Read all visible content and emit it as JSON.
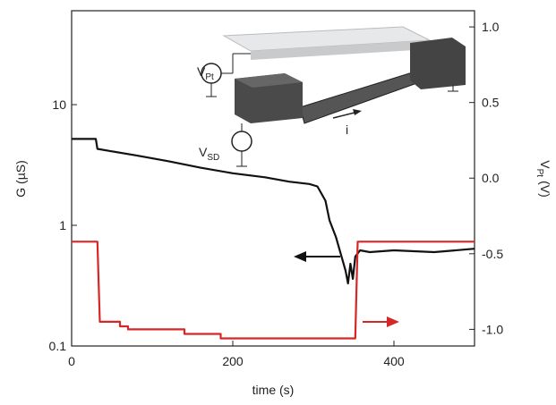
{
  "chart_data": {
    "type": "line",
    "xlabel": "time (s)",
    "ylabel": "G (µS)",
    "y2label": {
      "main": "V",
      "sub": "Pt",
      "unit": "(V)"
    },
    "xlim": [
      0,
      500
    ],
    "xticks": [
      0,
      200,
      400
    ],
    "ylim": [
      0.1,
      60
    ],
    "yticks": [
      0.1,
      1,
      10
    ],
    "log_y": true,
    "y2lim": [
      -1.11,
      1.107
    ],
    "y2ticks": [
      {
        "value": 1.0,
        "label": "1.0"
      },
      {
        "value": 0.5,
        "label": "0.5"
      },
      {
        "value": 0.0,
        "label": "0.0"
      },
      {
        "value": -0.5,
        "label": "-0.5"
      },
      {
        "value": -1.0,
        "label": "-1.0"
      }
    ],
    "series": [
      {
        "color": "#111111",
        "x": [
          0,
          30,
          32,
          50,
          80,
          120,
          160,
          200,
          240,
          270,
          295,
          305,
          315,
          320,
          328,
          335,
          340,
          343,
          346,
          349,
          352,
          358,
          370,
          400,
          450,
          500
        ],
        "values": [
          5.2,
          5.2,
          4.3,
          4.1,
          3.8,
          3.4,
          3.0,
          2.7,
          2.5,
          2.3,
          2.2,
          2.1,
          1.6,
          1.1,
          0.8,
          0.55,
          0.42,
          0.33,
          0.48,
          0.36,
          0.55,
          0.62,
          0.6,
          0.62,
          0.6,
          0.64
        ]
      },
      {
        "color": "#d62728",
        "axis": "y2",
        "x": [
          0,
          32,
          35,
          60,
          60,
          70,
          70,
          140,
          140,
          185,
          185,
          352,
          355,
          500
        ],
        "values": [
          -0.42,
          -0.42,
          -0.95,
          -0.95,
          -0.98,
          -0.98,
          -1.0,
          -1.0,
          -1.03,
          -1.03,
          -1.06,
          -1.06,
          -0.42,
          -0.42
        ]
      }
    ],
    "annotations": [
      {
        "main": "V",
        "sub": "Pt"
      },
      {
        "main": "V",
        "sub": "SD"
      },
      {
        "main": "i"
      }
    ]
  }
}
